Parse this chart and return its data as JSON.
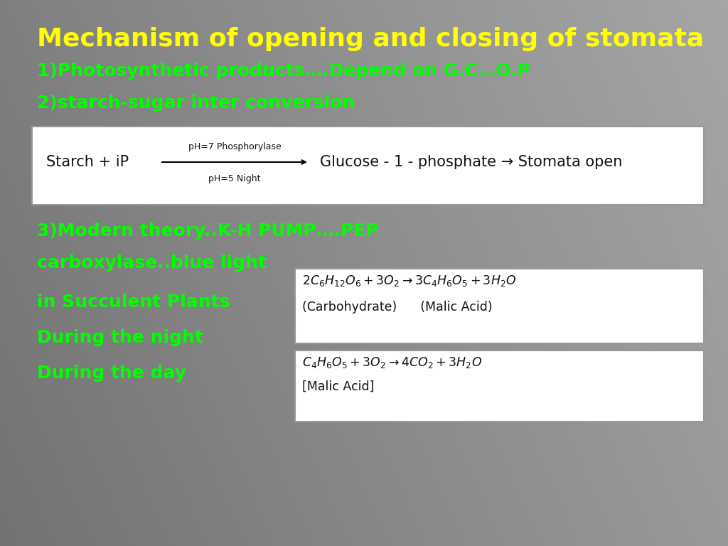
{
  "title": "Mechanism of opening and closing of stomata",
  "title_color": "#FFFF00",
  "title_fontsize": 26,
  "green_color": "#00FF00",
  "text_line1": "1)Photosynthetic products….Depend on G.C…O.P",
  "text_line2": "2)starch-sugar inter conversion",
  "text_line3": "3)Modern theory..K-H PUMP….PEP",
  "text_line4": "carboxylase..blue light",
  "text_line5": "in Succulent Plants",
  "text_line6": "During the night",
  "text_line7": "During the day",
  "box1_text_left": "Starch + iP",
  "box1_arrow_top": "pH=7 Phosphorylase",
  "box1_arrow_bottom": "pH=5 Night",
  "box1_text_right": "Glucose - 1 - phosphate → Stomata open",
  "box2_line1": "$2C_6H_{12}O_6 + 3O_2 \\rightarrow 3C_4H_6O_5 + 3H_2O$",
  "box2_line2": "(Carbohydrate)      (Malic Acid)",
  "box3_line1": "$C_4H_6O_5 + 3O_2 \\rightarrow 4CO_2 + 3H_2O$",
  "box3_line2": "[Malic Acid]",
  "white_box_color": "#FFFFFF",
  "black_text_color": "#111111",
  "border_color": "#999999"
}
